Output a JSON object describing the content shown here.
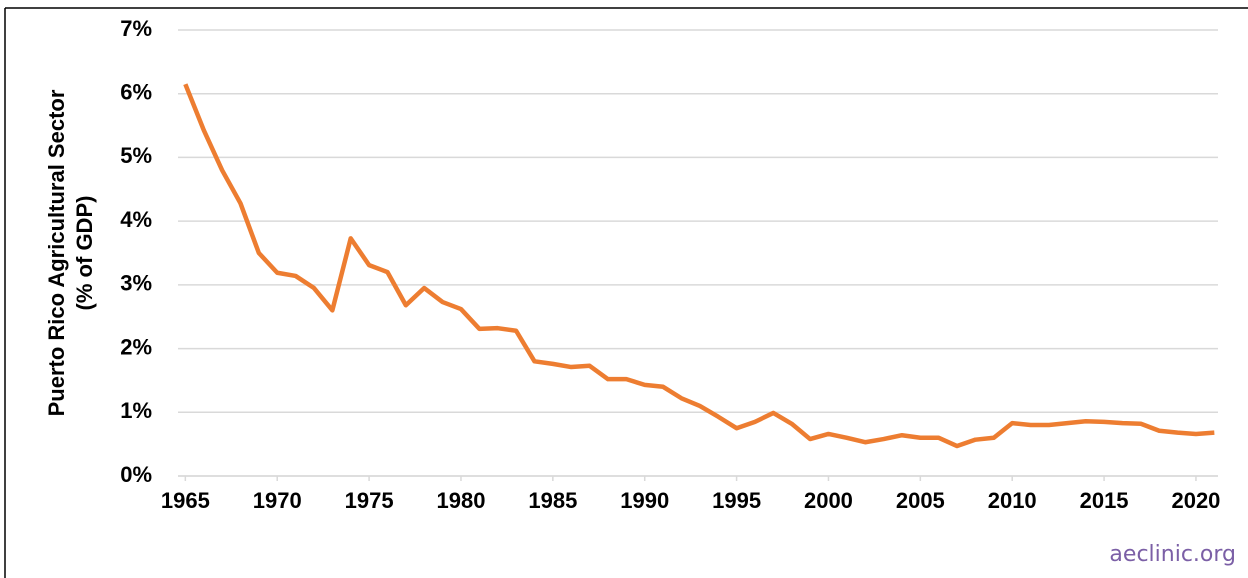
{
  "chart_data": {
    "type": "line",
    "y_label": [
      "Puerto Rico Agricultural Sector",
      "(% of GDP)"
    ],
    "source": "aeclinic.org",
    "x": [
      1965,
      1966,
      1967,
      1968,
      1969,
      1970,
      1971,
      1972,
      1973,
      1974,
      1975,
      1976,
      1977,
      1978,
      1979,
      1980,
      1981,
      1982,
      1983,
      1984,
      1985,
      1986,
      1987,
      1988,
      1989,
      1990,
      1991,
      1992,
      1993,
      1994,
      1995,
      1996,
      1997,
      1998,
      1999,
      2000,
      2001,
      2002,
      2003,
      2004,
      2005,
      2006,
      2007,
      2008,
      2009,
      2010,
      2011,
      2012,
      2013,
      2014,
      2015,
      2016,
      2017,
      2018,
      2019,
      2020,
      2021
    ],
    "series": [
      {
        "name": "Agricultural Sector",
        "color": "#ed7d31",
        "values": [
          6.15,
          5.43,
          4.8,
          4.28,
          3.5,
          3.19,
          3.14,
          2.95,
          2.6,
          3.73,
          3.31,
          3.2,
          2.68,
          2.95,
          2.73,
          2.62,
          2.31,
          2.32,
          2.28,
          1.8,
          1.76,
          1.71,
          1.73,
          1.52,
          1.52,
          1.43,
          1.4,
          1.22,
          1.1,
          0.93,
          0.75,
          0.85,
          0.99,
          0.82,
          0.58,
          0.66,
          0.6,
          0.53,
          0.58,
          0.64,
          0.6,
          0.6,
          0.47,
          0.57,
          0.6,
          0.83,
          0.8,
          0.8,
          0.83,
          0.86,
          0.85,
          0.83,
          0.82,
          0.71,
          0.68,
          0.66,
          0.68
        ]
      }
    ],
    "xlim": [
      1964.6,
      2021.2
    ],
    "xticks": [
      1965,
      1970,
      1975,
      1980,
      1985,
      1990,
      1995,
      2000,
      2005,
      2010,
      2015,
      2020
    ],
    "ylim": [
      0,
      7
    ],
    "yticks": [
      {
        "value": 0,
        "label": "0%"
      },
      {
        "value": 1,
        "label": "1%"
      },
      {
        "value": 2,
        "label": "2%"
      },
      {
        "value": 3,
        "label": "3%"
      },
      {
        "value": 4,
        "label": "4%"
      },
      {
        "value": 5,
        "label": "5%"
      },
      {
        "value": 6,
        "label": "6%"
      },
      {
        "value": 7,
        "label": "7%"
      }
    ],
    "grid": true
  }
}
